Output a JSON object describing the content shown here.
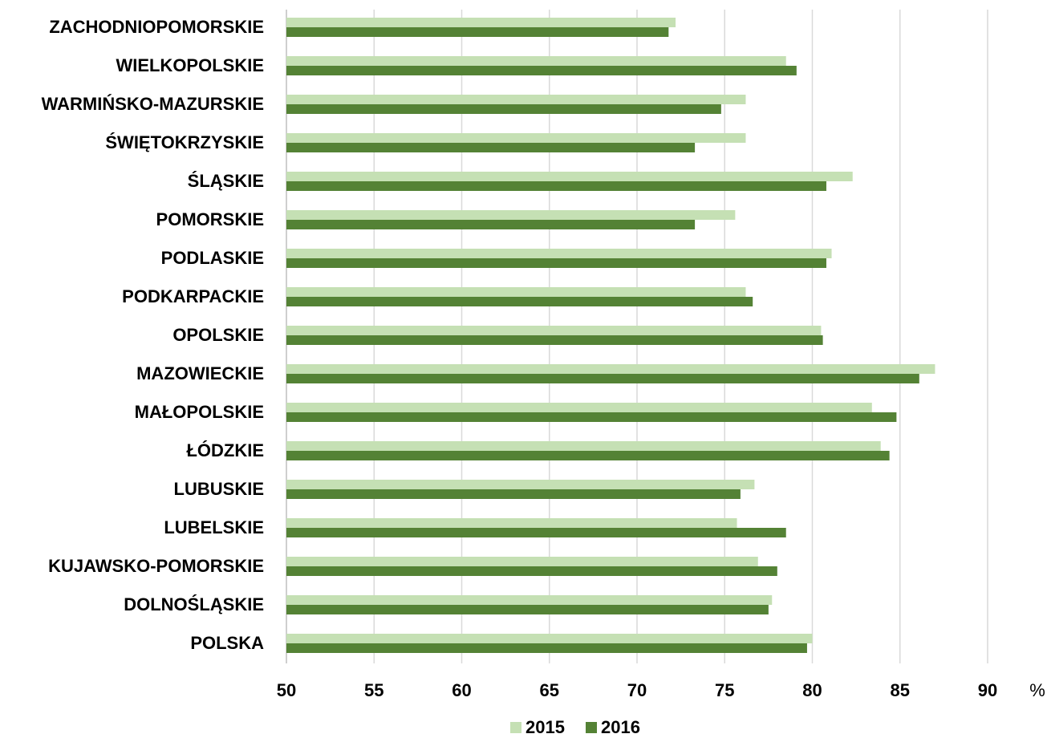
{
  "chart_data": {
    "type": "bar",
    "orientation": "horizontal",
    "categories": [
      "ZACHODNIOPOMORSKIE",
      "WIELKOPOLSKIE",
      "WARMIŃSKO-MAZURSKIE",
      "ŚWIĘTOKRZYSKIE",
      "ŚLĄSKIE",
      "POMORSKIE",
      "PODLASKIE",
      "PODKARPACKIE",
      "OPOLSKIE",
      "MAZOWIECKIE",
      "MAŁOPOLSKIE",
      "ŁÓDZKIE",
      "LUBUSKIE",
      "LUBELSKIE",
      "KUJAWSKO-POMORSKIE",
      "DOLNOŚLĄSKIE",
      "POLSKA"
    ],
    "series": [
      {
        "name": "2015",
        "color": "#c5e0b4",
        "values": [
          72.2,
          78.5,
          76.2,
          76.2,
          82.3,
          75.6,
          81.1,
          76.2,
          80.5,
          87.0,
          83.4,
          83.9,
          76.7,
          75.7,
          76.9,
          77.7,
          80.0
        ]
      },
      {
        "name": "2016",
        "color": "#548235",
        "values": [
          71.8,
          79.1,
          74.8,
          73.3,
          80.8,
          73.3,
          80.8,
          76.6,
          80.6,
          86.1,
          84.8,
          84.4,
          75.9,
          78.5,
          78.0,
          77.5,
          79.7
        ]
      }
    ],
    "xlim": [
      50,
      90
    ],
    "xticks": [
      "50",
      "55",
      "60",
      "65",
      "70",
      "75",
      "80",
      "85",
      "90"
    ],
    "x_unit": "%",
    "grid": "vertical",
    "legend_position": "bottom",
    "title": "",
    "xlabel": "",
    "ylabel": ""
  }
}
